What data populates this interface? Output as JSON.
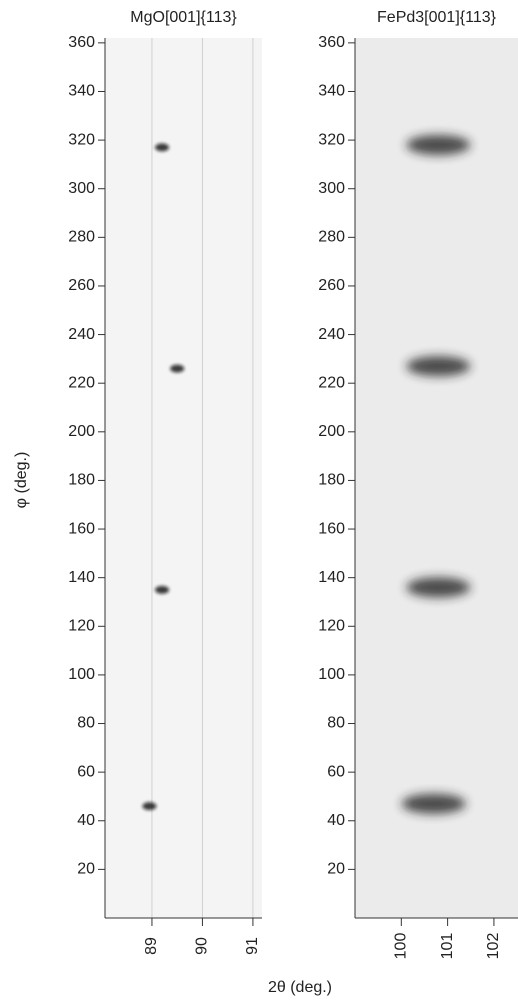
{
  "chart_data": [
    {
      "type": "heatmap",
      "title": "MgO[001]{113}",
      "ylabel": "φ (deg.)",
      "x": [
        89.2,
        89.5,
        89.2,
        88.95
      ],
      "y": [
        317,
        226,
        135,
        46
      ],
      "xlim": [
        88.07,
        91.18
      ],
      "ylim": [
        0,
        362
      ],
      "xticks": [
        89,
        90,
        91
      ],
      "yticks": [
        20,
        40,
        60,
        80,
        100,
        120,
        140,
        160,
        180,
        200,
        220,
        240,
        260,
        280,
        300,
        320,
        340,
        360
      ],
      "grid": true,
      "color": "#111111",
      "background": "#f4f4f4"
    },
    {
      "type": "heatmap",
      "title": "FePd3[001]{113}",
      "xlabel": "2θ (deg.)",
      "x": [
        100.8,
        100.8,
        100.8,
        100.7
      ],
      "y": [
        318,
        227,
        136,
        47
      ],
      "xlim": [
        99.0,
        102.52
      ],
      "ylim": [
        0,
        362
      ],
      "xticks": [
        100,
        101,
        102
      ],
      "yticks": [
        20,
        40,
        60,
        80,
        100,
        120,
        140,
        160,
        180,
        200,
        220,
        240,
        260,
        280,
        300,
        320,
        340,
        360
      ],
      "grid": false,
      "color": "#222222",
      "background": "#ebebeb"
    }
  ]
}
